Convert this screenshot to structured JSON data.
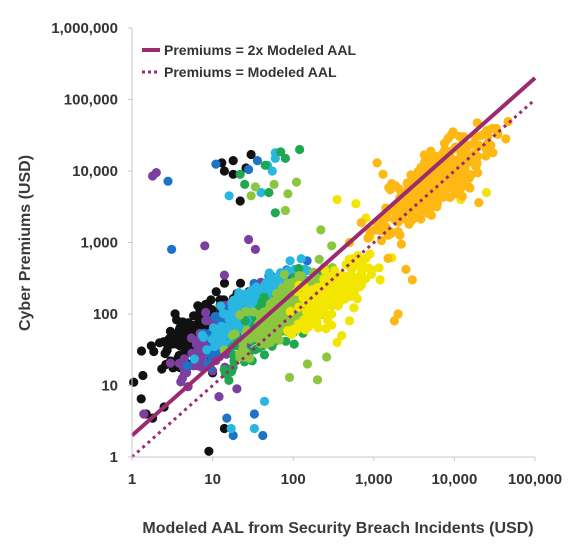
{
  "chart_data": {
    "type": "scatter",
    "title": "",
    "xlabel": "Modeled AAL from Security Breach Incidents (USD)",
    "ylabel": "Cyber Premiums (USD)",
    "x_scale": "log",
    "y_scale": "log",
    "xlim": [
      1,
      100000
    ],
    "ylim": [
      1,
      1000000
    ],
    "x_ticks": [
      1,
      10,
      100,
      1000,
      10000,
      100000
    ],
    "x_tick_labels": [
      "1",
      "10",
      "100",
      "1,000",
      "10,000",
      "100,000"
    ],
    "y_ticks": [
      1,
      10,
      100,
      1000,
      10000,
      100000,
      1000000
    ],
    "y_tick_labels": [
      "1",
      "10",
      "100",
      "1,000",
      "10,000",
      "100,000",
      "1,000,000"
    ],
    "grid": false,
    "legend_position": "top-left",
    "lines": [
      {
        "name": "Premiums = 2x Modeled AAL",
        "style": "solid",
        "color": "#9b2a6e",
        "multiplier": 2
      },
      {
        "name": "Premiums = Modeled AAL",
        "style": "dotted",
        "color": "#9b2a6e",
        "multiplier": 1
      }
    ],
    "series": [
      {
        "color": "#111111",
        "cloud_center": [
          6,
          55
        ],
        "n": 130,
        "points": [
          [
            1.3,
            6.5
          ],
          [
            1.5,
            4
          ],
          [
            1.8,
            3.5
          ],
          [
            2.5,
            5
          ],
          [
            13,
            13000
          ],
          [
            14,
            10000
          ],
          [
            18,
            14000
          ],
          [
            26,
            11000
          ],
          [
            30,
            17000
          ],
          [
            22,
            3800
          ],
          [
            18,
            9000
          ],
          [
            3,
            22
          ],
          [
            5,
            20
          ],
          [
            8,
            18
          ],
          [
            10,
            15
          ],
          [
            9,
            1.2
          ],
          [
            14,
            2.5
          ]
        ]
      },
      {
        "color": "#7b3fa0",
        "cloud_center": [
          14,
          50
        ],
        "n": 140,
        "points": [
          [
            1.8,
            8500
          ],
          [
            2,
            9500
          ],
          [
            8,
            900
          ],
          [
            14,
            350
          ],
          [
            28,
            1100
          ],
          [
            34,
            800
          ],
          [
            10,
            16
          ],
          [
            12,
            7
          ],
          [
            20,
            9
          ],
          [
            1.4,
            4
          ]
        ]
      },
      {
        "color": "#1e73c8",
        "cloud_center": [
          25,
          90
        ],
        "n": 160,
        "points": [
          [
            2.8,
            7200
          ],
          [
            3.1,
            800
          ],
          [
            11,
            12500
          ],
          [
            36,
            14000
          ],
          [
            28,
            10500
          ],
          [
            15,
            3.5
          ],
          [
            18,
            2
          ],
          [
            42,
            2
          ],
          [
            33,
            4
          ]
        ]
      },
      {
        "color": "#29b6e0",
        "cloud_center": [
          35,
          130
        ],
        "n": 180,
        "points": [
          [
            60,
            15000
          ],
          [
            60,
            18000
          ],
          [
            48,
            12000
          ],
          [
            16,
            4500
          ],
          [
            40,
            5000
          ],
          [
            55,
            10000
          ],
          [
            17,
            2.5
          ],
          [
            33,
            2.5
          ],
          [
            44,
            6
          ]
        ]
      },
      {
        "color": "#1fa850",
        "cloud_center": [
          70,
          90
        ],
        "n": 220,
        "points": [
          [
            70,
            18500
          ],
          [
            120,
            20000
          ],
          [
            45,
            12000
          ],
          [
            80,
            15000
          ],
          [
            25,
            6500
          ],
          [
            22,
            9000
          ],
          [
            60,
            2600
          ],
          [
            50,
            5000
          ]
        ]
      },
      {
        "color": "#8cc63f",
        "cloud_center": [
          80,
          110
        ],
        "n": 240,
        "points": [
          [
            58,
            6500
          ],
          [
            34,
            6000
          ],
          [
            86,
            4800
          ],
          [
            110,
            7000
          ],
          [
            30,
            4500
          ],
          [
            80,
            2800
          ],
          [
            220,
            1500
          ],
          [
            300,
            900
          ],
          [
            150,
            20
          ],
          [
            260,
            25
          ],
          [
            200,
            12
          ],
          [
            90,
            13
          ]
        ]
      },
      {
        "color": "#f2e600",
        "cloud_center": [
          300,
          200
        ],
        "n": 170,
        "points": [
          [
            350,
            4000
          ],
          [
            600,
            3500
          ],
          [
            800,
            2200
          ],
          [
            900,
            1200
          ],
          [
            1200,
            300
          ],
          [
            500,
            80
          ],
          [
            400,
            50
          ],
          [
            350,
            40
          ],
          [
            300,
            70
          ],
          [
            15000,
            8000
          ],
          [
            18000,
            12000
          ],
          [
            12000,
            4000
          ],
          [
            25000,
            5000
          ]
        ]
      },
      {
        "color": "#fdb813",
        "cloud_center": [
          6000,
          7500
        ],
        "n": 340,
        "points": [
          [
            1100,
            13000
          ],
          [
            1600,
            5500
          ],
          [
            1300,
            9000
          ],
          [
            500,
            1000
          ],
          [
            900,
            1400
          ],
          [
            700,
            1900
          ],
          [
            2000,
            100
          ],
          [
            1800,
            80
          ],
          [
            2200,
            950
          ],
          [
            3000,
            3000
          ],
          [
            2500,
            420
          ],
          [
            3000,
            300
          ],
          [
            1500,
            600
          ],
          [
            30000,
            18000
          ],
          [
            20000,
            23000
          ]
        ]
      }
    ]
  }
}
